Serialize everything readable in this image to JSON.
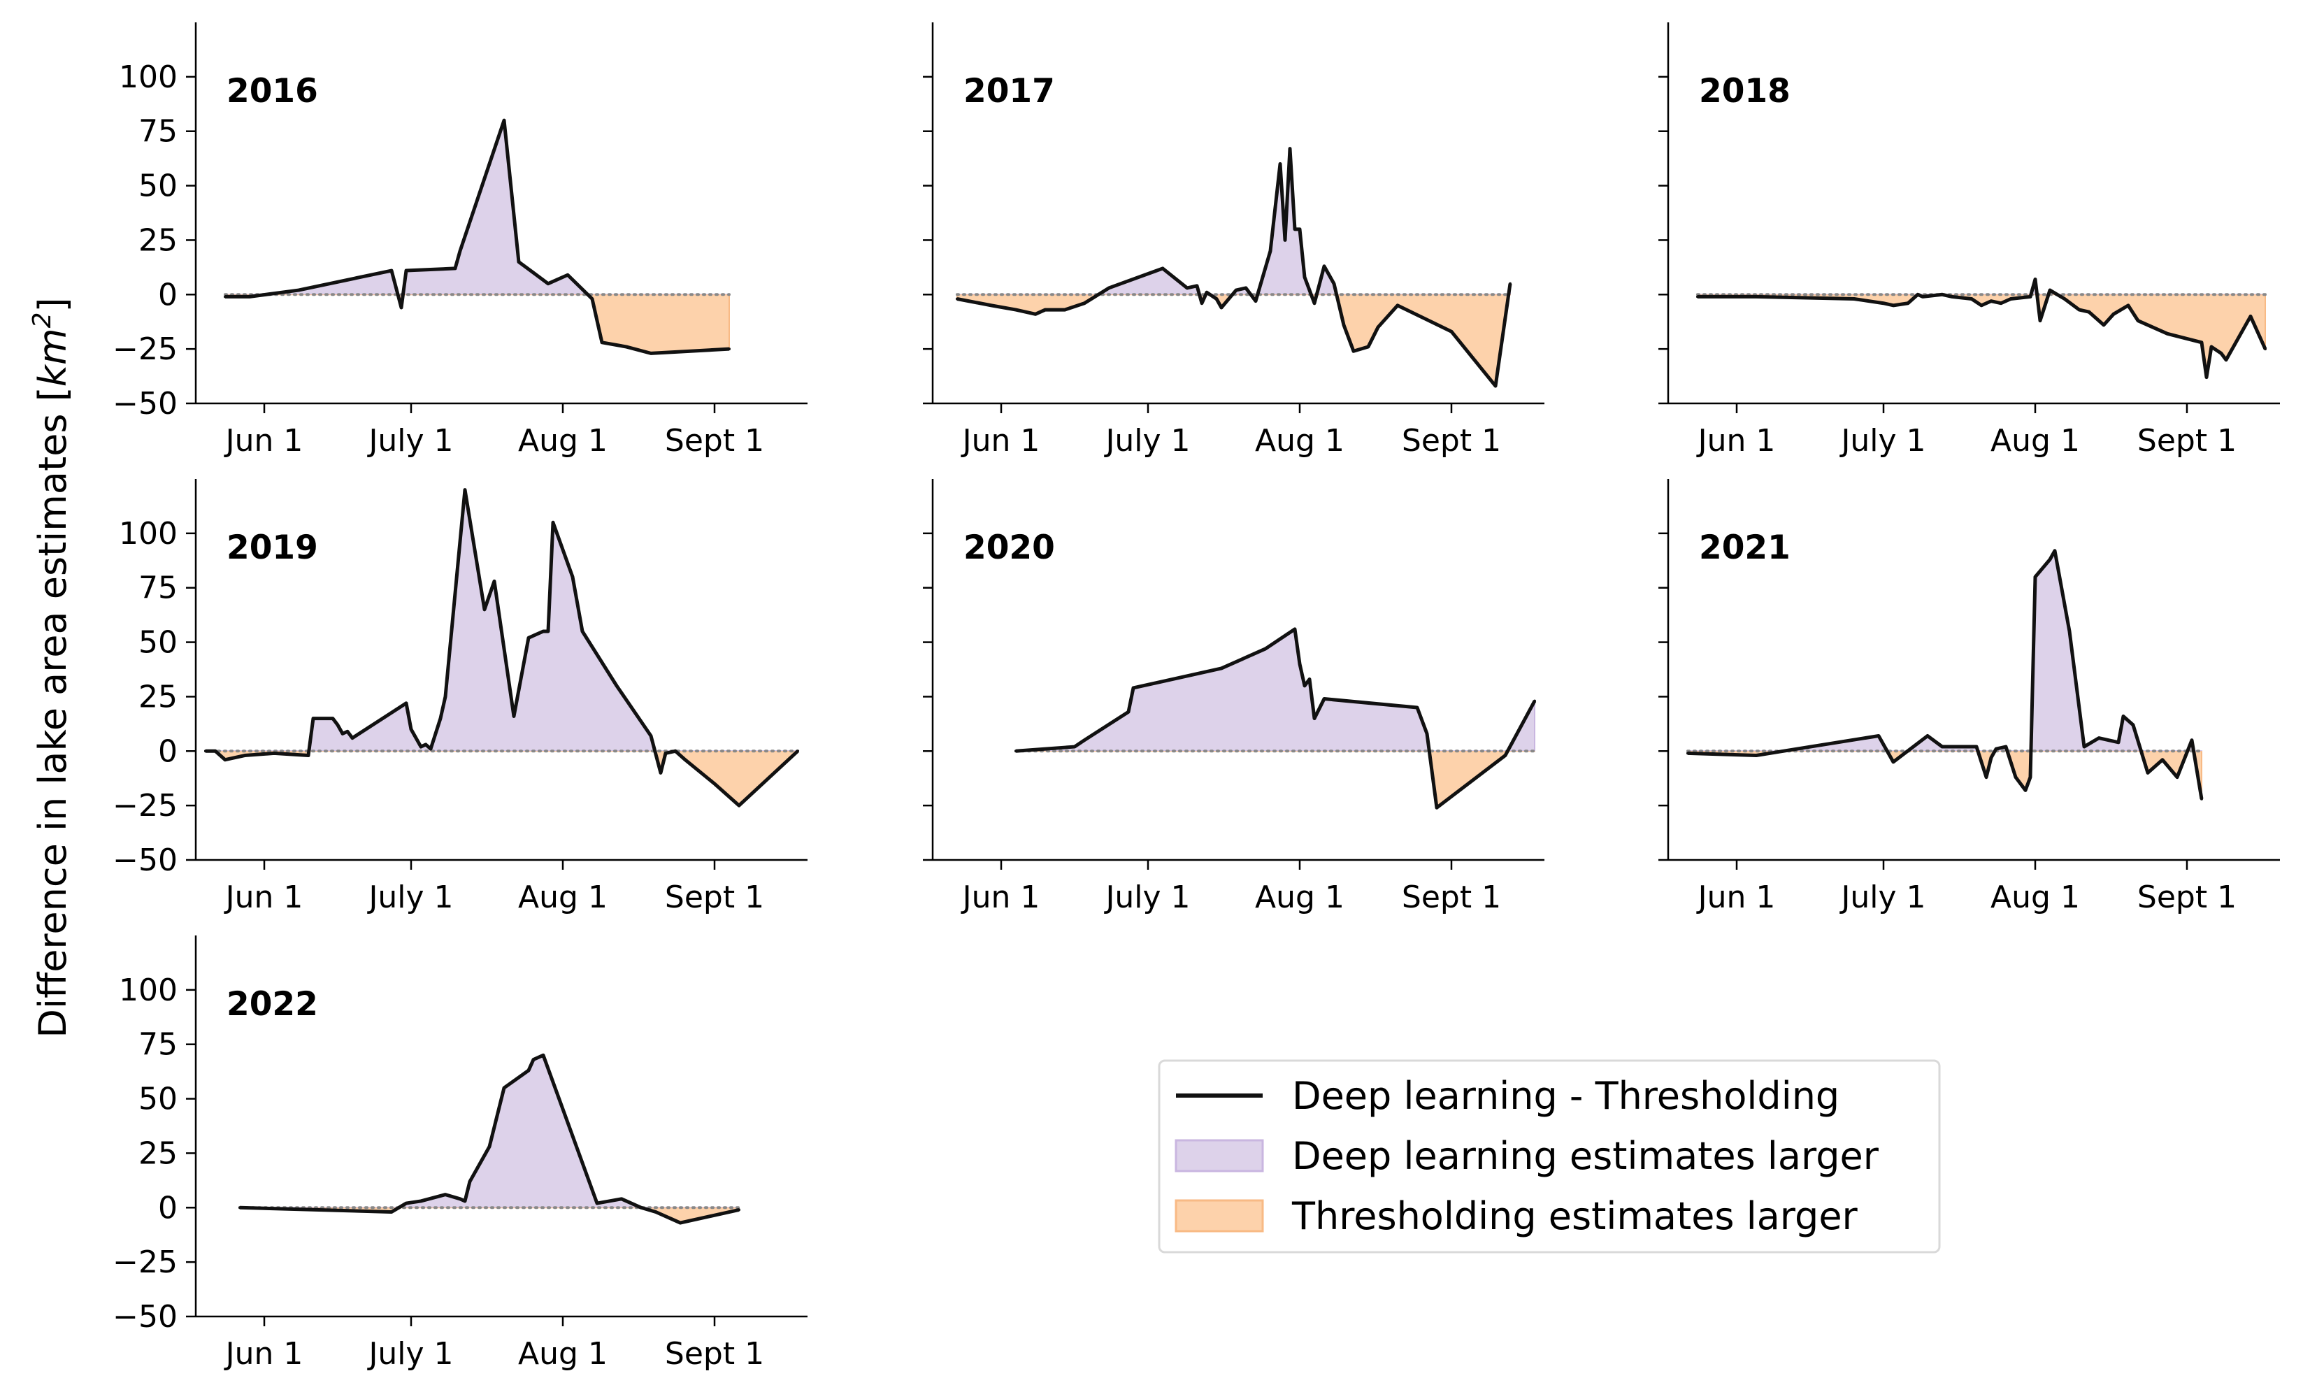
{
  "chart_data": {
    "type": "line",
    "ylabel_text": "Difference in lake area estimates [",
    "ylabel_unit": "km",
    "ylabel_unit_power": "2",
    "ylabel_end": "]",
    "ylim": [
      -50,
      125
    ],
    "xlim": [
      "2000-05-18",
      "2000-09-20"
    ],
    "yticks": [
      -50,
      -25,
      0,
      25,
      50,
      75,
      100
    ],
    "ytick_labels": [
      "−50",
      "−25",
      "0",
      "25",
      "50",
      "75",
      "100"
    ],
    "xticks": [
      "2000-06-01",
      "2000-07-01",
      "2000-08-01",
      "2000-09-01"
    ],
    "xtick_labels": [
      "Jun 1",
      "July 1",
      "Aug 1",
      "Sept 1"
    ],
    "zero_line": "dotted",
    "grid": false,
    "colors": {
      "line": "#111111",
      "positive_fill": "#ddd2ea",
      "positive_edge": "#c9b6e0",
      "negative_fill": "#fdd2ab",
      "negative_edge": "#f8ba85",
      "zero_line": "#888888"
    },
    "legend": {
      "placement": "lower-right",
      "entries": [
        {
          "kind": "line",
          "label": "Deep learning - Thresholding"
        },
        {
          "kind": "positive",
          "label": "Deep learning estimates larger"
        },
        {
          "kind": "negative",
          "label": "Thresholding estimates larger"
        }
      ]
    },
    "panels": [
      {
        "title": "2016",
        "x": [
          "2000-05-24",
          "2000-05-29",
          "2000-06-08",
          "2000-06-27",
          "2000-06-29",
          "2000-06-30",
          "2000-07-10",
          "2000-07-11",
          "2000-07-20",
          "2000-07-23",
          "2000-07-29",
          "2000-08-02",
          "2000-08-07",
          "2000-08-09",
          "2000-08-14",
          "2000-08-19",
          "2000-09-04"
        ],
        "y": [
          -1,
          -1,
          2,
          11,
          -6,
          11,
          12,
          20,
          80,
          15,
          5,
          9,
          -2,
          -22,
          -24,
          -27,
          -25
        ]
      },
      {
        "title": "2017",
        "x": [
          "2000-05-23",
          "2000-05-30",
          "2000-06-04",
          "2000-06-08",
          "2000-06-10",
          "2000-06-14",
          "2000-06-18",
          "2000-06-23",
          "2000-07-04",
          "2000-07-09",
          "2000-07-11",
          "2000-07-12",
          "2000-07-13",
          "2000-07-15",
          "2000-07-16",
          "2000-07-19",
          "2000-07-21",
          "2000-07-23",
          "2000-07-26",
          "2000-07-28",
          "2000-07-29",
          "2000-07-30",
          "2000-07-31",
          "2000-08-01",
          "2000-08-02",
          "2000-08-04",
          "2000-08-06",
          "2000-08-08",
          "2000-08-10",
          "2000-08-12",
          "2000-08-15",
          "2000-08-17",
          "2000-08-21",
          "2000-09-01",
          "2000-09-10",
          "2000-09-13"
        ],
        "y": [
          -2,
          -5,
          -7,
          -9,
          -7,
          -7,
          -4,
          3,
          12,
          3,
          4,
          -4,
          1,
          -2,
          -6,
          2,
          3,
          -3,
          20,
          60,
          25,
          67,
          30,
          30,
          8,
          -4,
          13,
          5,
          -14,
          -26,
          -24,
          -15,
          -5,
          -17,
          -42,
          5
        ]
      },
      {
        "title": "2018",
        "x": [
          "2000-05-24",
          "2000-06-05",
          "2000-06-25",
          "2000-07-01",
          "2000-07-03",
          "2000-07-06",
          "2000-07-08",
          "2000-07-09",
          "2000-07-13",
          "2000-07-15",
          "2000-07-19",
          "2000-07-21",
          "2000-07-23",
          "2000-07-25",
          "2000-07-27",
          "2000-07-31",
          "2000-08-01",
          "2000-08-02",
          "2000-08-04",
          "2000-08-07",
          "2000-08-10",
          "2000-08-12",
          "2000-08-15",
          "2000-08-17",
          "2000-08-20",
          "2000-08-22",
          "2000-08-28",
          "2000-09-04",
          "2000-09-05",
          "2000-09-06",
          "2000-09-08",
          "2000-09-09",
          "2000-09-14",
          "2000-09-17"
        ],
        "y": [
          -1,
          -1,
          -2,
          -4,
          -5,
          -4,
          0,
          -1,
          0,
          -1,
          -2,
          -5,
          -3,
          -4,
          -2,
          -1,
          7,
          -12,
          2,
          -2,
          -7,
          -8,
          -14,
          -9,
          -5,
          -12,
          -18,
          -22,
          -38,
          -24,
          -27,
          -30,
          -10,
          -25
        ]
      },
      {
        "title": "2019",
        "x": [
          "2000-05-20",
          "2000-05-22",
          "2000-05-24",
          "2000-05-28",
          "2000-06-03",
          "2000-06-10",
          "2000-06-11",
          "2000-06-15",
          "2000-06-16",
          "2000-06-17",
          "2000-06-18",
          "2000-06-19",
          "2000-06-30",
          "2000-07-01",
          "2000-07-03",
          "2000-07-04",
          "2000-07-05",
          "2000-07-07",
          "2000-07-08",
          "2000-07-12",
          "2000-07-16",
          "2000-07-18",
          "2000-07-22",
          "2000-07-25",
          "2000-07-28",
          "2000-07-29",
          "2000-07-30",
          "2000-08-03",
          "2000-08-05",
          "2000-08-12",
          "2000-08-19",
          "2000-08-21",
          "2000-08-22",
          "2000-08-24",
          "2000-08-26",
          "2000-09-01",
          "2000-09-06",
          "2000-09-18"
        ],
        "y": [
          0,
          0,
          -4,
          -2,
          -1,
          -2,
          15,
          15,
          12,
          8,
          9,
          6,
          22,
          10,
          2,
          3,
          1,
          15,
          25,
          120,
          65,
          78,
          16,
          52,
          55,
          55,
          105,
          80,
          55,
          30,
          7,
          -10,
          -1,
          0,
          -4,
          -15,
          -25,
          0
        ]
      },
      {
        "title": "2020",
        "x": [
          "2000-06-04",
          "2000-06-16",
          "2000-06-18",
          "2000-06-27",
          "2000-06-28",
          "2000-07-16",
          "2000-07-25",
          "2000-07-31",
          "2000-08-01",
          "2000-08-02",
          "2000-08-03",
          "2000-08-04",
          "2000-08-06",
          "2000-08-25",
          "2000-08-27",
          "2000-08-29",
          "2000-09-12",
          "2000-09-18"
        ],
        "y": [
          0,
          2,
          5,
          18,
          29,
          38,
          47,
          56,
          40,
          30,
          33,
          15,
          24,
          20,
          8,
          -26,
          -2,
          23
        ]
      },
      {
        "title": "2021",
        "x": [
          "2000-05-22",
          "2000-06-05",
          "2000-06-30",
          "2000-07-03",
          "2000-07-10",
          "2000-07-13",
          "2000-07-20",
          "2000-07-22",
          "2000-07-23",
          "2000-07-24",
          "2000-07-26",
          "2000-07-28",
          "2000-07-30",
          "2000-07-31",
          "2000-08-01",
          "2000-08-04",
          "2000-08-05",
          "2000-08-08",
          "2000-08-11",
          "2000-08-14",
          "2000-08-18",
          "2000-08-19",
          "2000-08-21",
          "2000-08-24",
          "2000-08-27",
          "2000-08-30",
          "2000-09-02",
          "2000-09-04"
        ],
        "y": [
          -1,
          -2,
          7,
          -5,
          7,
          2,
          2,
          -12,
          -3,
          1,
          2,
          -12,
          -18,
          -12,
          80,
          88,
          92,
          55,
          2,
          6,
          4,
          16,
          12,
          -10,
          -4,
          -12,
          5,
          -22
        ]
      },
      {
        "title": "2022",
        "x": [
          "2000-05-27",
          "2000-06-27",
          "2000-06-30",
          "2000-07-03",
          "2000-07-08",
          "2000-07-11",
          "2000-07-12",
          "2000-07-13",
          "2000-07-17",
          "2000-07-20",
          "2000-07-25",
          "2000-07-26",
          "2000-07-28",
          "2000-08-08",
          "2000-08-13",
          "2000-08-17",
          "2000-08-20",
          "2000-08-25",
          "2000-09-06"
        ],
        "y": [
          0,
          -2,
          2,
          3,
          6,
          4,
          3,
          12,
          28,
          55,
          63,
          68,
          70,
          2,
          4,
          0,
          -2,
          -7,
          -1
        ]
      }
    ]
  }
}
